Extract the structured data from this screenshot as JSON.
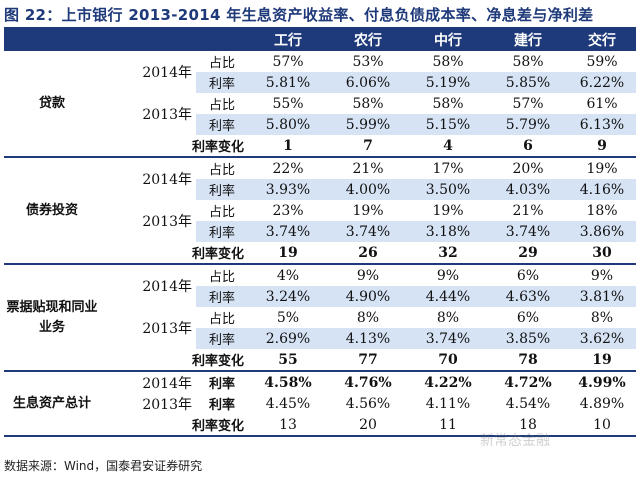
{
  "title": "图 22：上市银行 2013-2014 年生息资产收益率、付息负债成本率、净息差与净利差",
  "banks": [
    "工行",
    "农行",
    "中行",
    "建行",
    "交行"
  ],
  "sections": [
    {
      "name": "贷款",
      "blocks": [
        {
          "year": "2014年",
          "rows": [
            {
              "label": "占比",
              "values": [
                "57%",
                "53%",
                "58%",
                "58%",
                "59%"
              ]
            },
            {
              "label": "利率",
              "values": [
                "5.81%",
                "6.06%",
                "5.19%",
                "5.85%",
                "6.22%"
              ]
            }
          ]
        },
        {
          "year": "2013年",
          "rows": [
            {
              "label": "占比",
              "values": [
                "55%",
                "58%",
                "58%",
                "57%",
                "61%"
              ]
            },
            {
              "label": "利率",
              "values": [
                "5.80%",
                "5.99%",
                "5.15%",
                "5.79%",
                "6.13%"
              ]
            }
          ]
        }
      ],
      "change": {
        "label": "利率变化",
        "values": [
          "1",
          "7",
          "4",
          "6",
          "9"
        ]
      }
    },
    {
      "name": "债券投资",
      "blocks": [
        {
          "year": "2014年",
          "rows": [
            {
              "label": "占比",
              "values": [
                "22%",
                "21%",
                "17%",
                "20%",
                "19%"
              ]
            },
            {
              "label": "利率",
              "values": [
                "3.93%",
                "4.00%",
                "3.50%",
                "4.03%",
                "4.16%"
              ]
            }
          ]
        },
        {
          "year": "2013年",
          "rows": [
            {
              "label": "占比",
              "values": [
                "23%",
                "19%",
                "19%",
                "21%",
                "18%"
              ]
            },
            {
              "label": "利率",
              "values": [
                "3.74%",
                "3.74%",
                "3.18%",
                "3.74%",
                "3.86%"
              ]
            }
          ]
        }
      ],
      "change": {
        "label": "利率变化",
        "values": [
          "19",
          "26",
          "32",
          "29",
          "30"
        ]
      }
    },
    {
      "name": "票据贴现和同业业务",
      "blocks": [
        {
          "year": "2014年",
          "rows": [
            {
              "label": "占比",
              "values": [
                "4%",
                "9%",
                "9%",
                "6%",
                "9%"
              ]
            },
            {
              "label": "利率",
              "values": [
                "3.24%",
                "4.90%",
                "4.44%",
                "4.63%",
                "3.81%"
              ]
            }
          ]
        },
        {
          "year": "2013年",
          "rows": [
            {
              "label": "占比",
              "values": [
                "5%",
                "8%",
                "8%",
                "6%",
                "8%"
              ]
            },
            {
              "label": "利率",
              "values": [
                "2.69%",
                "4.13%",
                "3.74%",
                "3.85%",
                "3.62%"
              ]
            }
          ]
        }
      ],
      "change": {
        "label": "利率变化",
        "values": [
          "55",
          "77",
          "70",
          "78",
          "19"
        ]
      }
    }
  ],
  "total": {
    "name": "生息资产总计",
    "rows": [
      {
        "year": "2014年",
        "label": "利率",
        "values": [
          "4.58%",
          "4.76%",
          "4.22%",
          "4.72%",
          "4.99%"
        ]
      },
      {
        "year": "2013年",
        "label": "利率",
        "values": [
          "4.45%",
          "4.56%",
          "4.11%",
          "4.54%",
          "4.89%"
        ]
      }
    ],
    "change": {
      "label": "利率变化",
      "values": [
        "13",
        "20",
        "11",
        "18",
        "10"
      ]
    }
  },
  "source": "数据来源：Wind，国泰君安证券研究",
  "watermark": "新常态金融",
  "colors": {
    "header_bg": "#1f3a7a",
    "shade": "#d6e3f4",
    "title": "#1f3a7a"
  }
}
